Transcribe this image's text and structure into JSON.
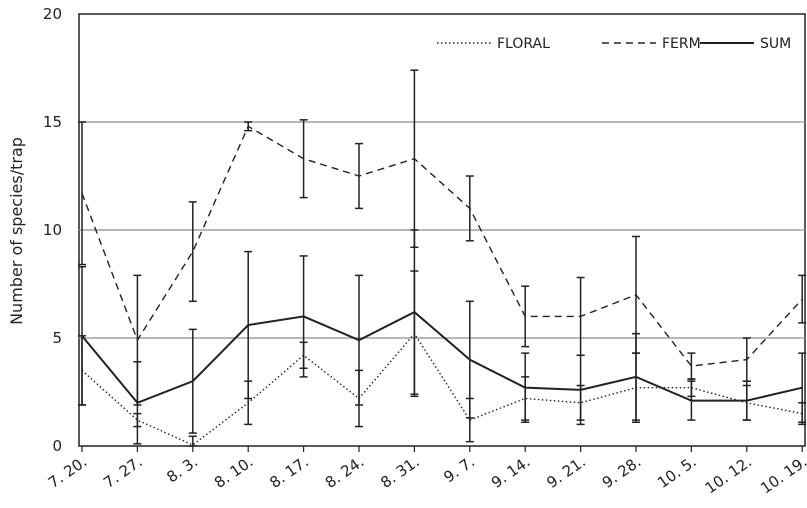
{
  "chart_data": {
    "type": "line",
    "title": "",
    "xlabel": "",
    "ylabel": "Number of species/trap",
    "ylim": [
      0,
      20
    ],
    "yticks": [
      "0",
      "5",
      "10",
      "15",
      "20"
    ],
    "grid": "horizontal",
    "legend_position": "top-right",
    "categories": [
      "7. 20.",
      "7. 27.",
      "8. 3.",
      "8. 10.",
      "8. 17.",
      "8. 24.",
      "8. 31.",
      "9. 7.",
      "9. 14.",
      "9. 21.",
      "9. 28.",
      "10. 5.",
      "10. 12.",
      "10. 19."
    ],
    "series": [
      {
        "name": "FLORAL",
        "dash": "dotted",
        "values": [
          3.5,
          1.2,
          0.05,
          2.0,
          4.2,
          2.2,
          5.2,
          1.2,
          2.2,
          2.0,
          2.7,
          2.7,
          2.0,
          1.5
        ],
        "errors": [
          1.6,
          0.3,
          0.4,
          1.0,
          0.6,
          1.3,
          2.9,
          1.0,
          1.0,
          0.8,
          1.6,
          0.4,
          0.8,
          0.5
        ]
      },
      {
        "name": "FERM",
        "dash": "dashed",
        "values": [
          11.7,
          4.9,
          9.0,
          14.8,
          13.3,
          12.5,
          13.3,
          11.0,
          6.0,
          6.0,
          7.0,
          3.7,
          4.0,
          6.8
        ],
        "errors": [
          3.3,
          3.0,
          2.3,
          0.2,
          1.8,
          1.5,
          4.1,
          1.5,
          1.4,
          1.8,
          2.7,
          0.6,
          1.0,
          1.1
        ]
      },
      {
        "name": "SUM",
        "dash": "solid",
        "values": [
          5.1,
          2.0,
          3.0,
          5.6,
          6.0,
          4.9,
          6.2,
          4.0,
          2.7,
          2.6,
          3.2,
          2.1,
          2.1,
          2.7
        ],
        "errors": [
          3.2,
          1.9,
          2.4,
          3.4,
          2.8,
          3.0,
          3.8,
          2.7,
          1.6,
          1.6,
          2.0,
          0.9,
          0.9,
          1.6
        ]
      }
    ]
  },
  "colors": {
    "line": "#222222",
    "grid": "#a0a0a0",
    "axis": "#222222",
    "background": "#ffffff"
  }
}
